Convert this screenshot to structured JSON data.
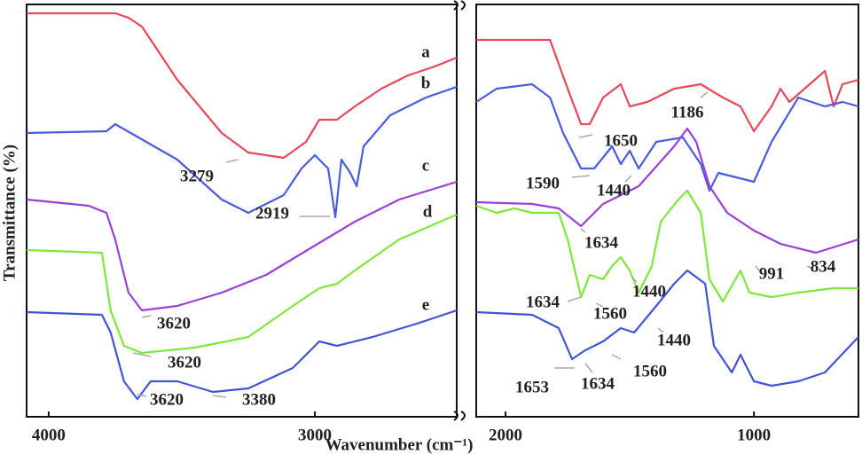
{
  "chart_data": [
    {
      "type": "line",
      "xlabel": "Wavenumber (cm⁻¹)",
      "ylabel": "Transmittance (%)",
      "xlim": [
        4083,
        2467
      ],
      "xticks": [
        4000,
        3000
      ],
      "ylim": [
        0,
        465
      ],
      "annotations": [
        "3279",
        "2919",
        "3620",
        "3620",
        "3620",
        "3380"
      ],
      "series": [
        {
          "name": "a",
          "color": "#e8485a",
          "x": [
            4083,
            3750,
            3700,
            3650,
            3517,
            3350,
            3250,
            3117,
            3033,
            2983,
            2917,
            2850,
            2750,
            2650,
            2550,
            2467
          ],
          "values": [
            455,
            455,
            450,
            440,
            380,
            320,
            298,
            292,
            310,
            335,
            335,
            350,
            370,
            385,
            395,
            405
          ]
        },
        {
          "name": "b",
          "color": "#4a5ce0",
          "x": [
            4083,
            3783,
            3750,
            3517,
            3350,
            3250,
            3117,
            3050,
            3000,
            2950,
            2923,
            2900,
            2867,
            2843,
            2817,
            2717,
            2583,
            2467
          ],
          "values": [
            320,
            322,
            330,
            290,
            245,
            230,
            250,
            280,
            295,
            280,
            225,
            290,
            275,
            260,
            305,
            340,
            360,
            372
          ]
        },
        {
          "name": "c",
          "color": "#9b40d8",
          "x": [
            4083,
            3850,
            3783,
            3750,
            3700,
            3650,
            3517,
            3350,
            3183,
            3017,
            2850,
            2683,
            2467
          ],
          "values": [
            245,
            238,
            230,
            200,
            140,
            120,
            125,
            140,
            160,
            190,
            220,
            245,
            265
          ]
        },
        {
          "name": "d",
          "color": "#7ee83a",
          "x": [
            4083,
            3800,
            3767,
            3717,
            3650,
            3450,
            3250,
            3083,
            2983,
            2917,
            2850,
            2683,
            2467
          ],
          "values": [
            188,
            185,
            120,
            80,
            72,
            78,
            90,
            125,
            145,
            150,
            165,
            200,
            228
          ]
        },
        {
          "name": "e",
          "color": "#3f55d6",
          "x": [
            4083,
            3800,
            3767,
            3717,
            3667,
            3617,
            3517,
            3383,
            3250,
            3083,
            2983,
            2917,
            2783,
            2617,
            2467
          ],
          "values": [
            118,
            115,
            95,
            40,
            20,
            40,
            40,
            28,
            32,
            55,
            85,
            80,
            90,
            105,
            120
          ]
        }
      ]
    },
    {
      "type": "line",
      "xlim": [
        2118,
        579
      ],
      "xticks": [
        2000,
        1000
      ],
      "ylim": [
        0,
        465
      ],
      "annotations": [
        "1650",
        "1186",
        "1590",
        "1440",
        "1634",
        "1634",
        "1560",
        "1440",
        "991",
        "834",
        "1440",
        "1653",
        "1634",
        "1560"
      ],
      "series": [
        {
          "color": "#e8485a",
          "x": [
            2118,
            1821,
            1750,
            1696,
            1661,
            1607,
            1536,
            1500,
            1429,
            1321,
            1214,
            1125,
            1054,
            1000,
            929,
            893,
            857,
            714,
            679,
            643,
            579
          ],
          "values": [
            425,
            425,
            370,
            330,
            330,
            360,
            375,
            350,
            355,
            370,
            375,
            360,
            350,
            322,
            350,
            370,
            355,
            390,
            350,
            375,
            380
          ]
        },
        {
          "color": "#4a5ce0",
          "x": [
            2118,
            2036,
            1893,
            1821,
            1768,
            1696,
            1643,
            1571,
            1536,
            1500,
            1464,
            1393,
            1286,
            1214,
            1179,
            1143,
            1071,
            1000,
            929,
            821,
            714,
            643,
            579
          ],
          "values": [
            355,
            370,
            375,
            360,
            320,
            280,
            280,
            305,
            285,
            300,
            280,
            310,
            315,
            285,
            255,
            275,
            270,
            265,
            310,
            360,
            350,
            355,
            350
          ]
        },
        {
          "color": "#9b40d8",
          "x": [
            2118,
            1893,
            1786,
            1696,
            1607,
            1464,
            1321,
            1268,
            1232,
            1179,
            1107,
            1000,
            893,
            750,
            579
          ],
          "values": [
            242,
            240,
            235,
            215,
            240,
            260,
            305,
            325,
            310,
            260,
            230,
            210,
            195,
            185,
            200
          ]
        },
        {
          "color": "#7ee83a",
          "x": [
            2118,
            2036,
            1964,
            1893,
            1786,
            1750,
            1696,
            1661,
            1607,
            1571,
            1536,
            1500,
            1464,
            1411,
            1375,
            1304,
            1268,
            1214,
            1179,
            1125,
            1054,
            1018,
            929,
            821,
            679,
            579
          ],
          "values": [
            238,
            230,
            235,
            230,
            230,
            200,
            135,
            160,
            155,
            170,
            180,
            165,
            140,
            170,
            220,
            245,
            255,
            230,
            155,
            130,
            165,
            140,
            135,
            140,
            145,
            145
          ]
        },
        {
          "color": "#3f55d6",
          "x": [
            2118,
            1893,
            1786,
            1732,
            1679,
            1607,
            1536,
            1482,
            1393,
            1321,
            1268,
            1196,
            1161,
            1089,
            1054,
            1000,
            929,
            821,
            714,
            579
          ],
          "values": [
            118,
            115,
            100,
            65,
            75,
            85,
            100,
            95,
            125,
            150,
            165,
            150,
            80,
            50,
            70,
            40,
            35,
            40,
            50,
            90
          ]
        }
      ]
    }
  ]
}
